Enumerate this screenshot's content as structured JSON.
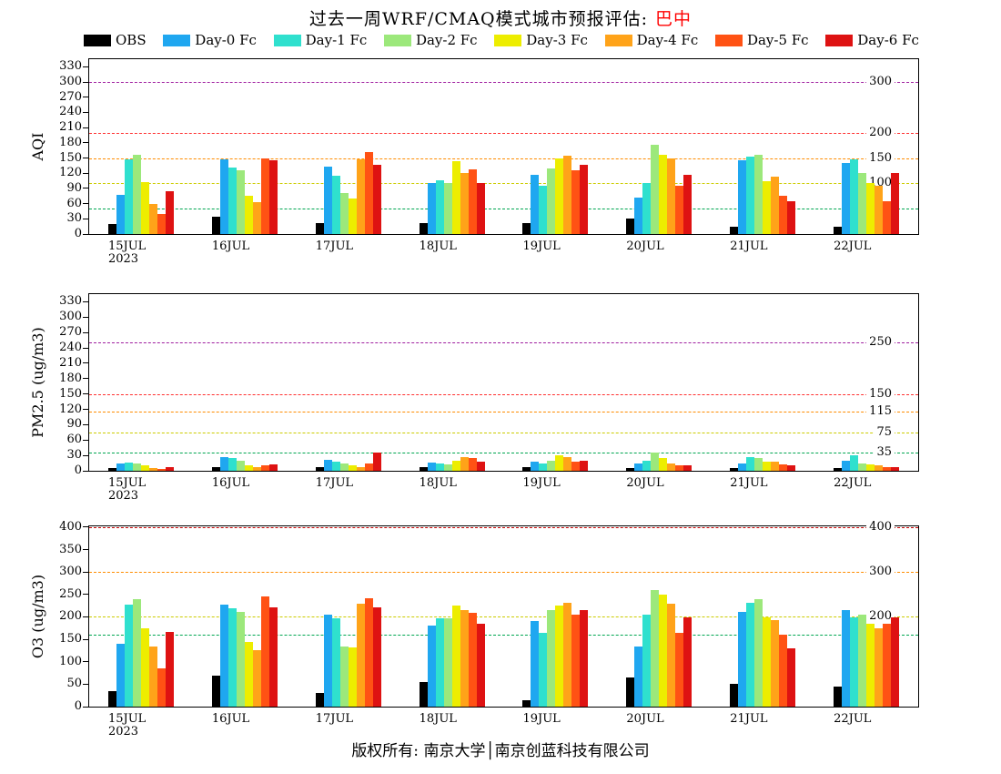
{
  "title": {
    "prefix": "过去一周WRF/CMAQ模式城市预报评估:",
    "city": "巴中"
  },
  "footer": {
    "text": "版权所有: 南京大学│南京创蓝科技有限公司"
  },
  "legend": {
    "items": [
      {
        "label": "OBS",
        "color": "#000000"
      },
      {
        "label": "Day-0 Fc",
        "color": "#1FA7F0"
      },
      {
        "label": "Day-1 Fc",
        "color": "#2FE0CE"
      },
      {
        "label": "Day-2 Fc",
        "color": "#9CE87B"
      },
      {
        "label": "Day-3 Fc",
        "color": "#EDED00"
      },
      {
        "label": "Day-4 Fc",
        "color": "#FFA319"
      },
      {
        "label": "Day-5 Fc",
        "color": "#FF5214"
      },
      {
        "label": "Day-6 Fc",
        "color": "#DE1212"
      }
    ]
  },
  "chart_data": [
    {
      "type": "bar",
      "ylabel": "AQI",
      "ylim": [
        0,
        345
      ],
      "yticks": [
        0,
        30,
        60,
        90,
        120,
        150,
        180,
        210,
        240,
        270,
        300,
        330
      ],
      "categories": [
        "15JUL",
        "16JUL",
        "17JUL",
        "18JUL",
        "19JUL",
        "20JUL",
        "21JUL",
        "22JUL"
      ],
      "year_label": "2023",
      "ref_lines": [
        {
          "value": 50,
          "color": "#00A651",
          "label": "50"
        },
        {
          "value": 100,
          "color": "#CCCC00",
          "label": "100"
        },
        {
          "value": 150,
          "color": "#FF8C00",
          "label": "150"
        },
        {
          "value": 200,
          "color": "#FF3030",
          "label": "200"
        },
        {
          "value": 300,
          "color": "#A020A0",
          "label": "300"
        }
      ],
      "series": [
        {
          "name": "OBS",
          "color": "#000000",
          "values": [
            20,
            35,
            22,
            22,
            22,
            30,
            15,
            15
          ]
        },
        {
          "name": "Day-0 Fc",
          "color": "#1FA7F0",
          "values": [
            78,
            147,
            133,
            100,
            117,
            72,
            146,
            140
          ]
        },
        {
          "name": "Day-1 Fc",
          "color": "#2FE0CE",
          "values": [
            148,
            132,
            115,
            106,
            95,
            100,
            152,
            147
          ]
        },
        {
          "name": "Day-2 Fc",
          "color": "#9CE87B",
          "values": [
            156,
            125,
            80,
            100,
            130,
            177,
            156,
            120
          ]
        },
        {
          "name": "Day-3 Fc",
          "color": "#EDED00",
          "values": [
            103,
            75,
            70,
            143,
            150,
            157,
            105,
            101
          ]
        },
        {
          "name": "Day-4 Fc",
          "color": "#FFA319",
          "values": [
            60,
            63,
            148,
            120,
            155,
            150,
            113,
            95
          ]
        },
        {
          "name": "Day-5 Fc",
          "color": "#FF5214",
          "values": [
            40,
            150,
            161,
            127,
            125,
            95,
            75,
            64
          ]
        },
        {
          "name": "Day-6 Fc",
          "color": "#DE1212",
          "values": [
            85,
            146,
            136,
            100,
            136,
            117,
            65,
            120
          ]
        }
      ]
    },
    {
      "type": "bar",
      "ylabel": "PM2.5 (ug/m3)",
      "ylim": [
        0,
        345
      ],
      "yticks": [
        0,
        30,
        60,
        90,
        120,
        150,
        180,
        210,
        240,
        270,
        300,
        330
      ],
      "categories": [
        "15JUL",
        "16JUL",
        "17JUL",
        "18JUL",
        "19JUL",
        "20JUL",
        "21JUL",
        "22JUL"
      ],
      "year_label": "2023",
      "ref_lines": [
        {
          "value": 35,
          "color": "#00A651",
          "label": "35"
        },
        {
          "value": 75,
          "color": "#CCCC00",
          "label": "75"
        },
        {
          "value": 115,
          "color": "#FF8C00",
          "label": "115"
        },
        {
          "value": 150,
          "color": "#FF3030",
          "label": "150"
        },
        {
          "value": 250,
          "color": "#A020A0",
          "label": "250"
        }
      ],
      "series": [
        {
          "name": "OBS",
          "color": "#000000",
          "values": [
            5,
            8,
            8,
            8,
            8,
            5,
            5,
            5
          ]
        },
        {
          "name": "Day-0 Fc",
          "color": "#1FA7F0",
          "values": [
            15,
            26,
            21,
            16,
            18,
            15,
            15,
            20
          ]
        },
        {
          "name": "Day-1 Fc",
          "color": "#2FE0CE",
          "values": [
            16,
            25,
            18,
            15,
            15,
            20,
            26,
            30
          ]
        },
        {
          "name": "Day-2 Fc",
          "color": "#9CE87B",
          "values": [
            15,
            20,
            15,
            13,
            20,
            36,
            25,
            15
          ]
        },
        {
          "name": "Day-3 Fc",
          "color": "#EDED00",
          "values": [
            10,
            10,
            10,
            20,
            30,
            25,
            18,
            12
          ]
        },
        {
          "name": "Day-4 Fc",
          "color": "#FFA319",
          "values": [
            5,
            8,
            8,
            26,
            26,
            15,
            18,
            10
          ]
        },
        {
          "name": "Day-5 Fc",
          "color": "#FF5214",
          "values": [
            3,
            10,
            15,
            25,
            18,
            10,
            12,
            8
          ]
        },
        {
          "name": "Day-6 Fc",
          "color": "#DE1212",
          "values": [
            8,
            12,
            35,
            18,
            20,
            10,
            10,
            8
          ]
        }
      ]
    },
    {
      "type": "bar",
      "ylabel": "O3 (ug/m3)",
      "ylim": [
        0,
        402
      ],
      "yticks": [
        0,
        50,
        100,
        150,
        200,
        250,
        300,
        350,
        400
      ],
      "categories": [
        "15JUL",
        "16JUL",
        "17JUL",
        "18JUL",
        "19JUL",
        "20JUL",
        "21JUL",
        "22JUL"
      ],
      "year_label": "2023",
      "ref_lines": [
        {
          "value": 160,
          "color": "#00A651",
          "label": "160"
        },
        {
          "value": 200,
          "color": "#CCCC00",
          "label": "200"
        },
        {
          "value": 300,
          "color": "#FF8C00",
          "label": "300"
        },
        {
          "value": 400,
          "color": "#C00000",
          "label": "400"
        }
      ],
      "series": [
        {
          "name": "OBS",
          "color": "#000000",
          "values": [
            35,
            70,
            30,
            55,
            15,
            65,
            50,
            45
          ]
        },
        {
          "name": "Day-0 Fc",
          "color": "#1FA7F0",
          "values": [
            140,
            228,
            205,
            180,
            190,
            135,
            212,
            215
          ]
        },
        {
          "name": "Day-1 Fc",
          "color": "#2FE0CE",
          "values": [
            228,
            220,
            196,
            196,
            165,
            205,
            232,
            200
          ]
        },
        {
          "name": "Day-2 Fc",
          "color": "#9CE87B",
          "values": [
            240,
            212,
            135,
            196,
            215,
            260,
            240,
            205
          ]
        },
        {
          "name": "Day-3 Fc",
          "color": "#EDED00",
          "values": [
            175,
            145,
            133,
            226,
            225,
            250,
            200,
            185
          ]
        },
        {
          "name": "Day-4 Fc",
          "color": "#FFA319",
          "values": [
            135,
            125,
            230,
            215,
            232,
            230,
            192,
            175
          ]
        },
        {
          "name": "Day-5 Fc",
          "color": "#FF5214",
          "values": [
            85,
            245,
            242,
            210,
            205,
            165,
            160,
            185
          ]
        },
        {
          "name": "Day-6 Fc",
          "color": "#DE1212",
          "values": [
            167,
            222,
            222,
            184,
            215,
            200,
            130,
            200
          ]
        }
      ]
    }
  ]
}
